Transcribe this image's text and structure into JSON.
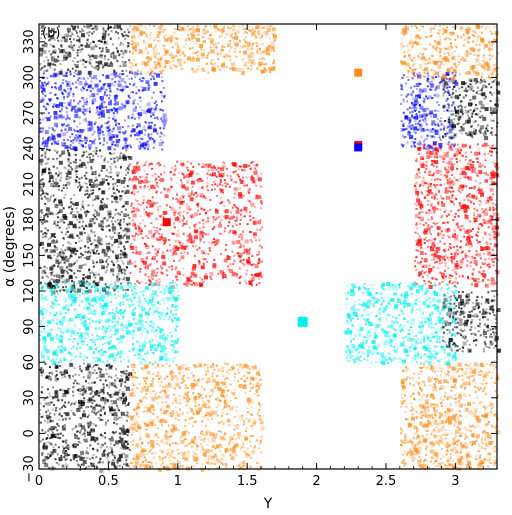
{
  "chart_data": {
    "type": "scatter",
    "panel_label": "(b)",
    "xlabel": "Y",
    "ylabel": "α (degrees)",
    "xlim": [
      0,
      3.3
    ],
    "ylim": [
      -30,
      345
    ],
    "xticks": [
      "0",
      "0.5",
      "1",
      "1.5",
      "2",
      "2.5",
      "3"
    ],
    "yticks": [
      "−30",
      "0",
      "30",
      "60",
      "90",
      "120",
      "150",
      "180",
      "210",
      "240",
      "270",
      "300",
      "330"
    ],
    "colors": {
      "black": "#000000",
      "blue": "#0000ff",
      "red": "#ff0000",
      "cyan": "#00eeee",
      "orange": "#ff8c1a"
    },
    "series": [
      {
        "color": "cyan",
        "points": [
          [
            1.9,
            94
          ]
        ]
      },
      {
        "color": "red",
        "points": [
          [
            0.92,
            178
          ],
          [
            2.3,
            243
          ]
        ]
      },
      {
        "color": "blue",
        "points": [
          [
            2.3,
            241
          ]
        ]
      },
      {
        "color": "orange",
        "points": [
          [
            2.3,
            304
          ]
        ]
      }
    ],
    "regions": [
      {
        "color": "black",
        "x": [
          0,
          0.65
        ],
        "y": [
          -30,
          60
        ]
      },
      {
        "color": "black",
        "x": [
          0,
          0.65
        ],
        "y": [
          120,
          240
        ]
      },
      {
        "color": "black",
        "x": [
          0,
          0.65
        ],
        "y": [
          305,
          345
        ]
      },
      {
        "color": "blue",
        "x": [
          0,
          0.9
        ],
        "y": [
          240,
          305
        ]
      },
      {
        "color": "blue",
        "x": [
          2.6,
          3.0
        ],
        "y": [
          240,
          305
        ]
      },
      {
        "color": "black",
        "x": [
          2.9,
          3.3
        ],
        "y": [
          250,
          300
        ]
      },
      {
        "color": "red",
        "x": [
          0.65,
          1.6
        ],
        "y": [
          125,
          230
        ]
      },
      {
        "color": "red",
        "x": [
          2.7,
          3.3
        ],
        "y": [
          125,
          245
        ]
      },
      {
        "color": "cyan",
        "x": [
          0,
          1.0
        ],
        "y": [
          60,
          128
        ]
      },
      {
        "color": "cyan",
        "x": [
          2.2,
          3.0
        ],
        "y": [
          60,
          128
        ]
      },
      {
        "color": "black",
        "x": [
          2.9,
          3.3
        ],
        "y": [
          70,
          120
        ]
      },
      {
        "color": "orange",
        "x": [
          0.65,
          1.6
        ],
        "y": [
          -30,
          60
        ]
      },
      {
        "color": "orange",
        "x": [
          2.6,
          3.3
        ],
        "y": [
          -30,
          60
        ]
      },
      {
        "color": "orange",
        "x": [
          0.65,
          1.7
        ],
        "y": [
          305,
          345
        ]
      },
      {
        "color": "orange",
        "x": [
          2.6,
          3.3
        ],
        "y": [
          300,
          345
        ]
      }
    ]
  }
}
